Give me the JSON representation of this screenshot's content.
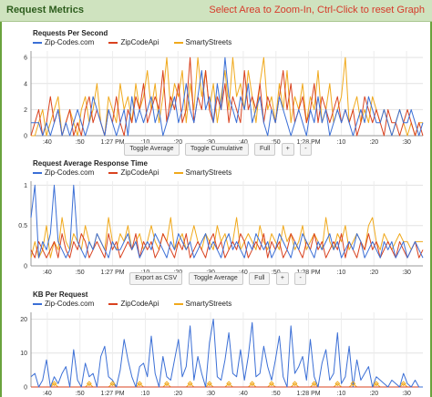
{
  "header": {
    "title": "Request Metrics",
    "hint": "Select Area to Zoom-In, Ctrl-Click to reset Graph"
  },
  "colors": {
    "header_bg": "#cfe3bf",
    "frame": "#6aa33d",
    "series": [
      "#3b6fd6",
      "#d9421f",
      "#f0a91c"
    ]
  },
  "panels": [
    {
      "controls": [
        "Toggle Average",
        "Toggle Cumulative",
        "Full",
        "+",
        "-"
      ]
    },
    {
      "controls": [
        "Export as CSV",
        "Toggle Average",
        "Full",
        "+",
        "-"
      ]
    },
    {
      "controls": []
    }
  ],
  "chart_data": [
    {
      "type": "line",
      "title": "Requests Per Second",
      "x_ticks": [
        ":40",
        ":50",
        "1:27 PM",
        ":10",
        ":20",
        ":30",
        ":40",
        ":50",
        "1:28 PM",
        ":10",
        ":20",
        ":30"
      ],
      "ylim": [
        0,
        6.5
      ],
      "y_ticks": [
        "0",
        "2",
        "4",
        "6"
      ],
      "grid": true,
      "legend_position": "top-left",
      "series": [
        {
          "name": "Zip-Codes.com",
          "values": [
            1,
            1,
            1,
            0,
            1,
            0,
            1,
            2,
            0,
            1,
            0,
            1,
            2,
            1,
            0,
            1,
            3,
            2,
            1,
            0,
            2,
            1,
            0,
            1,
            2,
            0,
            3,
            1,
            2,
            1,
            2,
            3,
            1,
            2,
            0,
            1,
            2,
            3,
            1,
            2,
            4,
            2,
            1,
            3,
            5,
            2,
            3,
            1,
            4,
            2,
            6,
            3,
            2,
            1,
            3,
            2,
            4,
            1,
            2,
            3,
            1,
            0,
            2,
            1,
            3,
            2,
            1,
            0,
            1,
            2,
            1,
            0,
            2,
            1,
            3,
            1,
            2,
            0,
            1,
            2,
            1,
            2,
            1,
            0,
            1,
            2,
            1,
            3,
            2,
            1,
            1,
            2,
            1,
            0,
            1,
            2,
            1,
            1,
            2,
            1,
            0,
            1
          ]
        },
        {
          "name": "ZipCodeApi",
          "values": [
            0,
            1,
            2,
            0,
            1,
            3,
            1,
            2,
            0,
            1,
            2,
            0,
            1,
            0,
            2,
            3,
            1,
            2,
            1,
            0,
            2,
            1,
            3,
            1,
            0,
            2,
            1,
            3,
            2,
            4,
            1,
            2,
            3,
            2,
            5,
            1,
            3,
            2,
            4,
            1,
            2,
            6,
            1,
            3,
            2,
            5,
            2,
            1,
            3,
            2,
            4,
            1,
            3,
            2,
            1,
            5,
            2,
            3,
            2,
            4,
            1,
            3,
            2,
            1,
            3,
            5,
            2,
            4,
            1,
            2,
            3,
            1,
            2,
            4,
            1,
            3,
            2,
            1,
            2,
            3,
            1,
            2,
            1,
            2,
            0,
            1,
            3,
            2,
            1,
            2,
            1,
            0,
            2,
            1,
            1,
            0,
            1,
            2,
            1,
            0,
            1,
            0
          ]
        },
        {
          "name": "SmartyStreets",
          "values": [
            0,
            0,
            1,
            2,
            0,
            1,
            2,
            3,
            0,
            1,
            2,
            1,
            0,
            2,
            3,
            1,
            2,
            4,
            1,
            0,
            3,
            2,
            1,
            4,
            2,
            3,
            1,
            4,
            2,
            3,
            5,
            2,
            4,
            1,
            3,
            6,
            2,
            4,
            3,
            5,
            1,
            4,
            2,
            6,
            3,
            5,
            2,
            4,
            1,
            3,
            5,
            2,
            6,
            3,
            4,
            2,
            5,
            3,
            1,
            4,
            6,
            2,
            3,
            1,
            4,
            2,
            5,
            1,
            3,
            2,
            4,
            1,
            3,
            2,
            5,
            1,
            2,
            4,
            1,
            2,
            3,
            6,
            1,
            2,
            3,
            1,
            2,
            1,
            3,
            2,
            1,
            2,
            1,
            0,
            1,
            2,
            1,
            0,
            1,
            0,
            1,
            1
          ]
        }
      ]
    },
    {
      "type": "line",
      "title": "Request Average Response Time",
      "x_ticks": [
        ":40",
        ":50",
        "1:27 PM",
        ":10",
        ":20",
        ":30",
        ":40",
        ":50",
        "1:28 PM",
        ":10",
        ":20",
        ":30"
      ],
      "ylim": [
        0,
        1.05
      ],
      "y_ticks": [
        "0",
        "0.5",
        "1"
      ],
      "grid": true,
      "legend_position": "top-left",
      "series": [
        {
          "name": "Zip-Codes.com",
          "values": [
            0.6,
            1.0,
            0.1,
            0.3,
            0.2,
            0.4,
            1.0,
            0.3,
            0.2,
            0.1,
            0.2,
            1.0,
            0.3,
            0.2,
            0.1,
            0.3,
            0.2,
            0.4,
            0.3,
            0.2,
            0.1,
            0.3,
            0.2,
            0.2,
            0.3,
            0.4,
            0.2,
            0.3,
            0.1,
            0.2,
            0.3,
            0.2,
            0.4,
            0.3,
            0.2,
            0.1,
            0.3,
            0.2,
            0.4,
            0.3,
            0.2,
            0.3,
            0.1,
            0.2,
            0.3,
            0.4,
            0.2,
            0.3,
            0.2,
            0.1,
            0.3,
            0.4,
            0.2,
            0.3,
            0.2,
            0.1,
            0.3,
            0.2,
            0.4,
            0.3,
            0.2,
            0.3,
            0.1,
            0.2,
            0.4,
            0.3,
            0.2,
            0.1,
            0.3,
            0.2,
            0.4,
            0.3,
            0.2,
            0.1,
            0.3,
            0.2,
            0.3,
            0.4,
            0.2,
            0.3,
            0.1,
            0.2,
            0.3,
            0.2,
            0.4,
            0.3,
            0.1,
            0.2,
            0.3,
            0.2,
            0.1,
            0.3,
            0.2,
            0.3,
            0.1,
            0.2,
            0.3,
            0.1,
            0.2,
            0.3,
            0.2,
            0.1
          ]
        },
        {
          "name": "ZipCodeApi",
          "values": [
            0.2,
            0.1,
            0.3,
            0.2,
            0.1,
            0.2,
            0.3,
            0.1,
            0.4,
            0.2,
            0.1,
            0.3,
            0.2,
            0.4,
            0.3,
            0.1,
            0.2,
            0.3,
            0.2,
            0.1,
            0.4,
            0.2,
            0.3,
            0.1,
            0.2,
            0.3,
            0.2,
            0.4,
            0.1,
            0.3,
            0.2,
            0.3,
            0.1,
            0.2,
            0.4,
            0.3,
            0.2,
            0.1,
            0.3,
            0.2,
            0.4,
            0.1,
            0.2,
            0.3,
            0.2,
            0.1,
            0.3,
            0.4,
            0.2,
            0.3,
            0.1,
            0.2,
            0.3,
            0.2,
            0.4,
            0.3,
            0.1,
            0.2,
            0.3,
            0.2,
            0.4,
            0.1,
            0.3,
            0.2,
            0.3,
            0.1,
            0.2,
            0.4,
            0.3,
            0.2,
            0.1,
            0.3,
            0.2,
            0.4,
            0.2,
            0.3,
            0.1,
            0.2,
            0.3,
            0.2,
            0.4,
            0.1,
            0.3,
            0.2,
            0.1,
            0.3,
            0.2,
            0.4,
            0.2,
            0.3,
            0.1,
            0.2,
            0.3,
            0.2,
            0.1,
            0.3,
            0.2,
            0.1,
            0.2,
            0.3,
            0.1,
            0.2
          ]
        },
        {
          "name": "SmartyStreets",
          "values": [
            0.1,
            0.3,
            0.1,
            0.2,
            0.5,
            0.1,
            0.3,
            0.2,
            0.6,
            0.3,
            0.2,
            0.4,
            0.3,
            0.2,
            0.5,
            0.3,
            0.2,
            0.4,
            0.3,
            0.2,
            0.6,
            0.3,
            0.2,
            0.4,
            0.3,
            0.5,
            0.2,
            0.3,
            0.4,
            0.2,
            0.3,
            0.5,
            0.3,
            0.2,
            0.4,
            0.3,
            0.6,
            0.2,
            0.3,
            0.4,
            0.2,
            0.3,
            0.5,
            0.3,
            0.2,
            0.4,
            0.3,
            0.2,
            0.5,
            0.3,
            0.4,
            0.2,
            0.3,
            0.6,
            0.2,
            0.3,
            0.4,
            0.3,
            0.2,
            0.5,
            0.3,
            0.2,
            0.4,
            0.3,
            0.2,
            0.5,
            0.3,
            0.4,
            0.2,
            0.3,
            0.5,
            0.2,
            0.3,
            0.4,
            0.3,
            0.2,
            0.6,
            0.3,
            0.2,
            0.4,
            0.3,
            0.5,
            0.2,
            0.3,
            0.4,
            0.3,
            0.2,
            0.5,
            0.6,
            0.3,
            0.2,
            0.4,
            0.3,
            0.2,
            0.3,
            0.4,
            0.3,
            0.3,
            0.2,
            0.3,
            0.3,
            0.3
          ]
        }
      ]
    },
    {
      "type": "line",
      "title": "KB Per Request",
      "x_ticks": [
        ":40",
        ":50",
        "1:27 PM",
        ":10",
        ":20",
        ":30",
        ":40",
        ":50",
        "1:28 PM",
        ":10",
        ":20",
        ":30"
      ],
      "ylim": [
        0,
        22
      ],
      "y_ticks": [
        "0",
        "10",
        "20"
      ],
      "grid": true,
      "legend_position": "top-left",
      "series": [
        {
          "name": "Zip-Codes.com",
          "values": [
            3,
            4,
            0,
            2,
            8,
            0,
            3,
            1,
            4,
            6,
            0,
            11,
            2,
            0,
            7,
            3,
            4,
            0,
            9,
            12,
            3,
            2,
            0,
            5,
            14,
            8,
            3,
            0,
            6,
            7,
            3,
            15,
            4,
            0,
            9,
            3,
            2,
            8,
            14,
            3,
            6,
            18,
            2,
            9,
            4,
            0,
            13,
            20,
            3,
            2,
            8,
            16,
            4,
            3,
            11,
            2,
            9,
            19,
            3,
            4,
            12,
            6,
            2,
            8,
            15,
            3,
            0,
            18,
            4,
            6,
            9,
            2,
            14,
            3,
            0,
            7,
            11,
            2,
            4,
            16,
            1,
            3,
            12,
            0,
            8,
            2,
            4,
            6,
            0,
            3,
            2,
            1,
            0,
            2,
            1,
            0,
            4,
            1,
            0,
            2,
            0,
            0
          ]
        },
        {
          "name": "ZipCodeApi",
          "values": [
            0,
            0,
            0,
            0,
            0,
            0,
            0,
            0,
            0,
            0,
            0,
            0,
            0,
            0,
            0,
            0,
            0,
            0,
            0,
            0,
            0,
            0,
            0,
            0,
            0,
            0,
            0,
            0,
            0,
            0,
            0,
            0,
            0,
            0,
            0,
            0,
            0,
            0,
            0,
            0,
            0,
            0,
            0,
            0,
            0,
            0,
            0,
            0,
            0,
            0,
            0,
            0,
            0,
            0,
            0,
            0,
            0,
            0,
            0,
            0,
            0,
            0,
            0,
            0,
            0,
            0,
            0,
            0,
            0,
            0,
            0,
            0,
            0,
            0,
            0,
            0,
            0,
            0,
            0,
            0,
            0,
            0,
            0,
            0,
            0,
            0,
            0,
            0,
            0,
            0,
            0,
            0,
            0,
            0,
            0,
            0,
            0,
            0,
            0,
            0,
            0,
            0
          ]
        },
        {
          "name": "SmartyStreets",
          "values": [
            0,
            0,
            0,
            0,
            0,
            0,
            1,
            0,
            0,
            0,
            0,
            0,
            0,
            0,
            0,
            1,
            0,
            0,
            0,
            0,
            0,
            1,
            0,
            0,
            0,
            0,
            0,
            0,
            1,
            0,
            0,
            0,
            0,
            0,
            0,
            1,
            0,
            0,
            0,
            0,
            0,
            1,
            0,
            0,
            0,
            0,
            1,
            0,
            0,
            0,
            0,
            1,
            0,
            0,
            0,
            0,
            0,
            1,
            0,
            0,
            0,
            0,
            1,
            0,
            0,
            0,
            0,
            0,
            1,
            0,
            0,
            0,
            0,
            1,
            0,
            0,
            0,
            0,
            0,
            1,
            0,
            0,
            0,
            1,
            0,
            0,
            0,
            0,
            0,
            1,
            0,
            0,
            0,
            0,
            0,
            0,
            1,
            0,
            0,
            0,
            0,
            0
          ]
        }
      ]
    }
  ]
}
